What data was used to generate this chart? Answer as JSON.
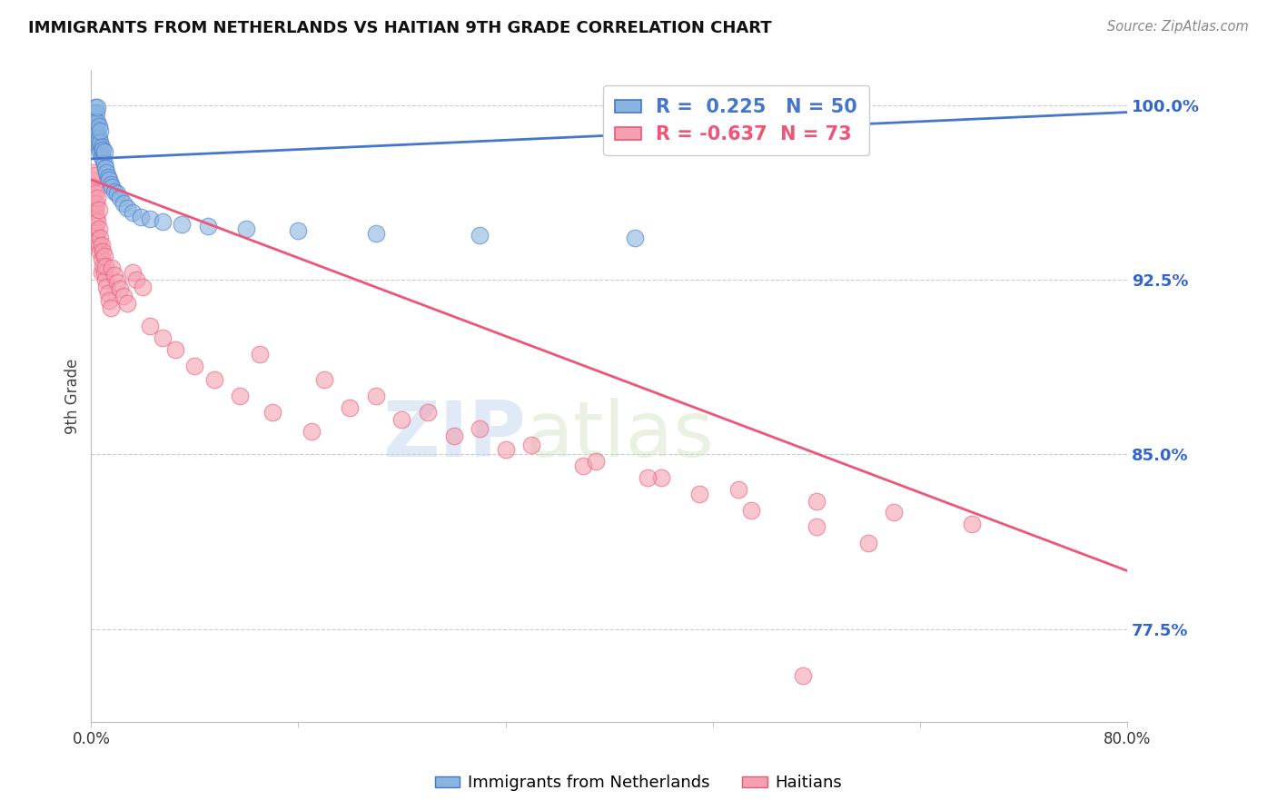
{
  "title": "IMMIGRANTS FROM NETHERLANDS VS HAITIAN 9TH GRADE CORRELATION CHART",
  "source": "Source: ZipAtlas.com",
  "ylabel": "9th Grade",
  "ylabel_right_labels": [
    "100.0%",
    "92.5%",
    "85.0%",
    "77.5%"
  ],
  "ylabel_right_values": [
    1.0,
    0.925,
    0.85,
    0.775
  ],
  "xlim": [
    0.0,
    0.8
  ],
  "ylim": [
    0.735,
    1.015
  ],
  "blue_R": 0.225,
  "blue_N": 50,
  "pink_R": -0.637,
  "pink_N": 73,
  "blue_color": "#89b4e0",
  "pink_color": "#f4a0b0",
  "blue_line_color": "#4477CC",
  "pink_line_color": "#EE5577",
  "legend_label_blue": "Immigrants from Netherlands",
  "legend_label_pink": "Haitians",
  "background_color": "#FFFFFF",
  "blue_line_x0": 0.0,
  "blue_line_y0": 0.977,
  "blue_line_x1": 0.8,
  "blue_line_y1": 0.997,
  "pink_line_x0": 0.0,
  "pink_line_y0": 0.968,
  "pink_line_x1": 0.8,
  "pink_line_y1": 0.8,
  "blue_dots_x": [
    0.001,
    0.002,
    0.002,
    0.002,
    0.003,
    0.003,
    0.003,
    0.003,
    0.004,
    0.004,
    0.004,
    0.004,
    0.005,
    0.005,
    0.005,
    0.005,
    0.006,
    0.006,
    0.006,
    0.007,
    0.007,
    0.007,
    0.008,
    0.008,
    0.009,
    0.009,
    0.01,
    0.01,
    0.011,
    0.012,
    0.013,
    0.014,
    0.015,
    0.016,
    0.018,
    0.02,
    0.022,
    0.025,
    0.028,
    0.032,
    0.038,
    0.045,
    0.055,
    0.07,
    0.09,
    0.12,
    0.16,
    0.22,
    0.3,
    0.42
  ],
  "blue_dots_y": [
    0.993,
    0.995,
    0.991,
    0.997,
    0.99,
    0.993,
    0.987,
    0.999,
    0.988,
    0.992,
    0.985,
    0.997,
    0.984,
    0.989,
    0.993,
    0.999,
    0.982,
    0.986,
    0.991,
    0.98,
    0.984,
    0.989,
    0.978,
    0.982,
    0.977,
    0.981,
    0.975,
    0.98,
    0.973,
    0.971,
    0.969,
    0.968,
    0.966,
    0.965,
    0.963,
    0.962,
    0.96,
    0.958,
    0.956,
    0.954,
    0.952,
    0.951,
    0.95,
    0.949,
    0.948,
    0.947,
    0.946,
    0.945,
    0.944,
    0.943
  ],
  "pink_dots_x": [
    0.001,
    0.001,
    0.002,
    0.002,
    0.002,
    0.003,
    0.003,
    0.003,
    0.003,
    0.004,
    0.004,
    0.004,
    0.005,
    0.005,
    0.005,
    0.006,
    0.006,
    0.006,
    0.007,
    0.007,
    0.008,
    0.008,
    0.008,
    0.009,
    0.009,
    0.01,
    0.01,
    0.011,
    0.011,
    0.012,
    0.013,
    0.014,
    0.015,
    0.016,
    0.018,
    0.02,
    0.022,
    0.025,
    0.028,
    0.032,
    0.035,
    0.04,
    0.045,
    0.055,
    0.065,
    0.08,
    0.095,
    0.115,
    0.14,
    0.17,
    0.2,
    0.24,
    0.28,
    0.32,
    0.38,
    0.44,
    0.5,
    0.56,
    0.62,
    0.68,
    0.13,
    0.18,
    0.22,
    0.26,
    0.3,
    0.34,
    0.39,
    0.43,
    0.47,
    0.51,
    0.56,
    0.6,
    0.55
  ],
  "pink_dots_y": [
    0.968,
    0.961,
    0.965,
    0.958,
    0.971,
    0.955,
    0.962,
    0.948,
    0.97,
    0.952,
    0.945,
    0.958,
    0.942,
    0.95,
    0.96,
    0.94,
    0.947,
    0.955,
    0.937,
    0.943,
    0.934,
    0.94,
    0.928,
    0.931,
    0.937,
    0.928,
    0.935,
    0.925,
    0.931,
    0.922,
    0.919,
    0.916,
    0.913,
    0.93,
    0.927,
    0.924,
    0.921,
    0.918,
    0.915,
    0.928,
    0.925,
    0.922,
    0.905,
    0.9,
    0.895,
    0.888,
    0.882,
    0.875,
    0.868,
    0.86,
    0.87,
    0.865,
    0.858,
    0.852,
    0.845,
    0.84,
    0.835,
    0.83,
    0.825,
    0.82,
    0.893,
    0.882,
    0.875,
    0.868,
    0.861,
    0.854,
    0.847,
    0.84,
    0.833,
    0.826,
    0.819,
    0.812,
    0.755
  ]
}
